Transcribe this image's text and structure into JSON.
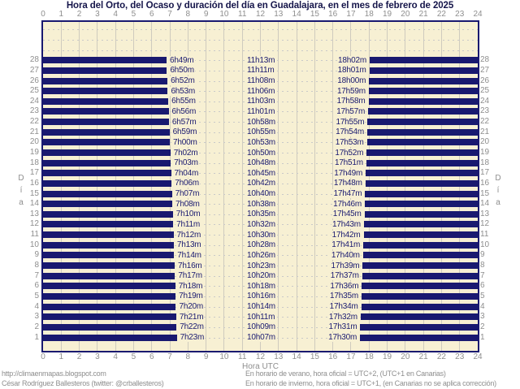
{
  "title": "Hora del Orto, del Ocaso y duración del día en Guadalajara, en el mes de febrero de 2025",
  "axes": {
    "x_label": "Hora UTC",
    "y_label": "Día",
    "x_ticks": [
      0,
      1,
      2,
      3,
      4,
      5,
      6,
      7,
      8,
      9,
      10,
      11,
      12,
      13,
      14,
      15,
      16,
      17,
      18,
      19,
      20,
      21,
      22,
      23,
      24
    ],
    "x_range": [
      0,
      24
    ],
    "day_range": [
      1,
      28
    ]
  },
  "chart_data": {
    "type": "bar",
    "orientation": "horizontal",
    "title": "Hora del Orto, del Ocaso y duración del día en Guadalajara, en el mes de febrero de 2025",
    "xlabel": "Hora UTC",
    "ylabel": "Día",
    "xlim": [
      0,
      24
    ],
    "days": [
      {
        "day": 28,
        "orto": "6h49m",
        "duracion": "11h13m",
        "ocaso": "18h02m"
      },
      {
        "day": 27,
        "orto": "6h50m",
        "duracion": "11h11m",
        "ocaso": "18h01m"
      },
      {
        "day": 26,
        "orto": "6h52m",
        "duracion": "11h08m",
        "ocaso": "18h00m"
      },
      {
        "day": 25,
        "orto": "6h53m",
        "duracion": "11h06m",
        "ocaso": "17h59m"
      },
      {
        "day": 24,
        "orto": "6h55m",
        "duracion": "11h03m",
        "ocaso": "17h58m"
      },
      {
        "day": 23,
        "orto": "6h56m",
        "duracion": "11h01m",
        "ocaso": "17h57m"
      },
      {
        "day": 22,
        "orto": "6h57m",
        "duracion": "10h58m",
        "ocaso": "17h55m"
      },
      {
        "day": 21,
        "orto": "6h59m",
        "duracion": "10h55m",
        "ocaso": "17h54m"
      },
      {
        "day": 20,
        "orto": "7h00m",
        "duracion": "10h53m",
        "ocaso": "17h53m"
      },
      {
        "day": 19,
        "orto": "7h02m",
        "duracion": "10h50m",
        "ocaso": "17h52m"
      },
      {
        "day": 18,
        "orto": "7h03m",
        "duracion": "10h48m",
        "ocaso": "17h51m"
      },
      {
        "day": 17,
        "orto": "7h04m",
        "duracion": "10h45m",
        "ocaso": "17h49m"
      },
      {
        "day": 16,
        "orto": "7h06m",
        "duracion": "10h42m",
        "ocaso": "17h48m"
      },
      {
        "day": 15,
        "orto": "7h07m",
        "duracion": "10h40m",
        "ocaso": "17h47m"
      },
      {
        "day": 14,
        "orto": "7h08m",
        "duracion": "10h38m",
        "ocaso": "17h46m"
      },
      {
        "day": 13,
        "orto": "7h10m",
        "duracion": "10h35m",
        "ocaso": "17h45m"
      },
      {
        "day": 12,
        "orto": "7h11m",
        "duracion": "10h32m",
        "ocaso": "17h43m"
      },
      {
        "day": 11,
        "orto": "7h12m",
        "duracion": "10h30m",
        "ocaso": "17h42m"
      },
      {
        "day": 10,
        "orto": "7h13m",
        "duracion": "10h28m",
        "ocaso": "17h41m"
      },
      {
        "day": 9,
        "orto": "7h14m",
        "duracion": "10h26m",
        "ocaso": "17h40m"
      },
      {
        "day": 8,
        "orto": "7h16m",
        "duracion": "10h23m",
        "ocaso": "17h39m"
      },
      {
        "day": 7,
        "orto": "7h17m",
        "duracion": "10h20m",
        "ocaso": "17h37m"
      },
      {
        "day": 6,
        "orto": "7h18m",
        "duracion": "10h18m",
        "ocaso": "17h36m"
      },
      {
        "day": 5,
        "orto": "7h19m",
        "duracion": "10h16m",
        "ocaso": "17h35m"
      },
      {
        "day": 4,
        "orto": "7h20m",
        "duracion": "10h14m",
        "ocaso": "17h34m"
      },
      {
        "day": 3,
        "orto": "7h21m",
        "duracion": "10h11m",
        "ocaso": "17h32m"
      },
      {
        "day": 2,
        "orto": "7h22m",
        "duracion": "10h09m",
        "ocaso": "17h31m"
      },
      {
        "day": 1,
        "orto": "7h23m",
        "duracion": "10h07m",
        "ocaso": "17h30m"
      }
    ]
  },
  "footer": {
    "left_lines": [
      "http://climaenmapas.blogspot.com",
      "César Rodríguez Ballesteros (twitter: @crballesteros)"
    ],
    "right_lines": [
      "En horario de verano, hora oficial = UTC+2, (UTC+1 en Canarias)",
      "En horario de invierno, hora oficial = UTC+1, (en Canarias no se aplica corrección)"
    ]
  },
  "colors": {
    "bar": "#191970",
    "plot_bg": "#f7f0d3",
    "grid_vertical": "#cfcbbe",
    "grid_dashed": "#c9c9c9",
    "tick_text": "#8e8e8e",
    "title_text": "#15154a"
  }
}
